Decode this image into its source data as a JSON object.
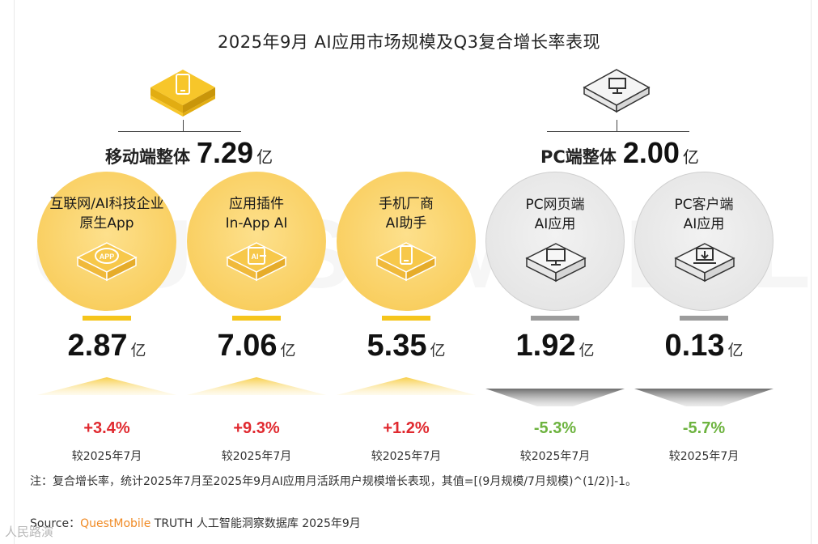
{
  "title": "2025年9月 AI应用市场规模及Q3复合增长率表现",
  "colors": {
    "mobile": "#f5c51c",
    "pc": "#9c9c9c",
    "up": "#e0292f",
    "down": "#6db33f"
  },
  "groups": [
    {
      "name": "移动端整体",
      "value": "7.29",
      "unit": "亿",
      "icon": "smartphone-icon"
    },
    {
      "name": "PC端整体",
      "value": "2.00",
      "unit": "亿",
      "icon": "monitor-icon"
    }
  ],
  "chart_data": {
    "type": "table",
    "title": "2025年9月 AI应用市场规模及Q3复合增长率表现",
    "unit": "亿",
    "categories": [
      "互联网/AI科技企业原生App",
      "应用插件In-App AI",
      "手机厂商AI助手",
      "PC网页端AI应用",
      "PC客户端AI应用"
    ],
    "series": [
      {
        "name": "规模",
        "values": [
          2.87,
          7.06,
          5.35,
          1.92,
          0.13
        ]
      },
      {
        "name": "复合增长率",
        "values": [
          3.4,
          9.3,
          1.2,
          -5.3,
          -5.7
        ]
      }
    ],
    "items": [
      {
        "line1": "互联网/AI科技企业",
        "line2": "原生App",
        "value": "2.87",
        "unit": "亿",
        "change": "+3.4%",
        "direction": "up",
        "compare": "较2025年7月",
        "group": "mobile",
        "icon": "app-icon"
      },
      {
        "line1": "应用插件",
        "line2": "In-App AI",
        "value": "7.06",
        "unit": "亿",
        "change": "+9.3%",
        "direction": "up",
        "compare": "较2025年7月",
        "group": "mobile",
        "icon": "ai-plugin-icon"
      },
      {
        "line1": "手机厂商",
        "line2": "AI助手",
        "value": "5.35",
        "unit": "亿",
        "change": "+1.2%",
        "direction": "up",
        "compare": "较2025年7月",
        "group": "mobile",
        "icon": "phone-icon"
      },
      {
        "line1": "PC网页端",
        "line2": "AI应用",
        "value": "1.92",
        "unit": "亿",
        "change": "-5.3%",
        "direction": "down",
        "compare": "较2025年7月",
        "group": "pc",
        "icon": "monitor-icon"
      },
      {
        "line1": "PC客户端",
        "line2": "AI应用",
        "value": "0.13",
        "unit": "亿",
        "change": "-5.7%",
        "direction": "down",
        "compare": "较2025年7月",
        "group": "pc",
        "icon": "laptop-download-icon"
      }
    ]
  },
  "note": "注：复合增长率，统计2025年7月至2025年9月AI应用月活跃用户规模增长表现，其值=[(9月规模/7月规模)^(1/2)]-1。",
  "source": {
    "prefix": "Source：",
    "brand": "QuestMobile",
    "rest": " TRUTH 人工智能洞察数据库 2025年9月"
  },
  "watermark": "QUESTMOBILE",
  "corner": "人民路演"
}
